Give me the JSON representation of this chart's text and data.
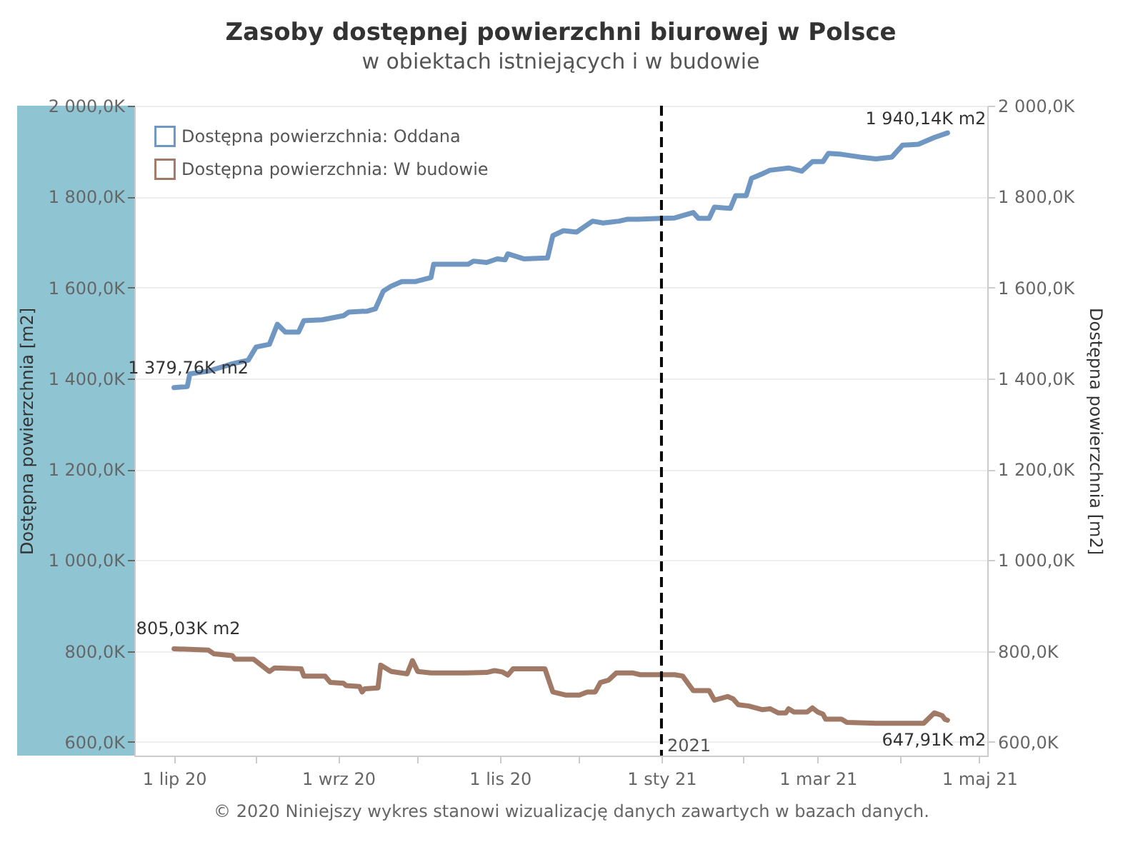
{
  "chart_data": {
    "type": "line",
    "title": "Zasoby dostępnej powierzchni biurowej w Polsce",
    "subtitle": "w obiektach istniejących i w budowie",
    "ylabel": "Dostępna powierzchnia [m2]",
    "y2label": "Dostępna powierzchnia [m2]",
    "xlim": [
      "2020-06-16",
      "2021-05-04"
    ],
    "xticks": [
      {
        "value": "2020-07-01",
        "label": "1 lip 20"
      },
      {
        "value": "2020-08-01",
        "label": null
      },
      {
        "value": "2020-09-01",
        "label": "1 wrz 20"
      },
      {
        "value": "2020-10-01",
        "label": null
      },
      {
        "value": "2020-11-01",
        "label": "1 lis 20"
      },
      {
        "value": "2020-12-01",
        "label": null
      },
      {
        "value": "2021-01-01",
        "label": "1 sty 21"
      },
      {
        "value": "2021-02-01",
        "label": null
      },
      {
        "value": "2021-03-01",
        "label": "1 mar 21"
      },
      {
        "value": "2021-04-01",
        "label": null
      },
      {
        "value": "2021-05-01",
        "label": "1 maj 21"
      }
    ],
    "ylim": [
      570,
      2000
    ],
    "yticks": [
      {
        "value": 600,
        "label": "600,0K"
      },
      {
        "value": 800,
        "label": "800,0K"
      },
      {
        "value": 1000,
        "label": "1 000,0K"
      },
      {
        "value": 1200,
        "label": "1 200,0K"
      },
      {
        "value": 1400,
        "label": "1 400,0K"
      },
      {
        "value": 1600,
        "label": "1 600,0K"
      },
      {
        "value": 1800,
        "label": "1 800,0K"
      },
      {
        "value": 2000,
        "label": "2 000,0K"
      }
    ],
    "y2lim": [
      570,
      2000
    ],
    "y2ticks": [
      {
        "value": 600,
        "label": "600,0K"
      },
      {
        "value": 800,
        "label": "800,0K"
      },
      {
        "value": 1000,
        "label": "1 000,0K"
      },
      {
        "value": 1200,
        "label": "1 200,0K"
      },
      {
        "value": 1400,
        "label": "1 400,0K"
      },
      {
        "value": 1600,
        "label": "1 600,0K"
      },
      {
        "value": 1800,
        "label": "1 800,0K"
      },
      {
        "value": 2000,
        "label": "2 000,0K"
      }
    ],
    "grid": "y",
    "legend": "top left",
    "series": [
      {
        "name": "Dostępna powierzchnia: Oddana",
        "color": "#7096c2",
        "x": [
          "2020-07-01",
          "2020-07-06",
          "2020-07-07",
          "2020-07-14",
          "2020-07-23",
          "2020-07-29",
          "2020-08-01",
          "2020-08-06",
          "2020-08-09",
          "2020-08-12",
          "2020-08-17",
          "2020-08-19",
          "2020-08-26",
          "2020-09-03",
          "2020-09-05",
          "2020-09-12",
          "2020-09-15",
          "2020-09-18",
          "2020-09-21",
          "2020-09-25",
          "2020-09-30",
          "2020-10-06",
          "2020-10-07",
          "2020-10-20",
          "2020-10-22",
          "2020-10-27",
          "2020-10-31",
          "2020-11-03",
          "2020-11-04",
          "2020-11-10",
          "2020-11-19",
          "2020-11-21",
          "2020-11-25",
          "2020-11-30",
          "2020-12-06",
          "2020-12-10",
          "2020-12-16",
          "2020-12-19",
          "2020-12-23",
          "2021-01-01",
          "2021-01-06",
          "2021-01-13",
          "2021-01-15",
          "2021-01-19",
          "2021-01-21",
          "2021-01-27",
          "2021-01-29",
          "2021-02-02",
          "2021-02-04",
          "2021-02-08",
          "2021-02-11",
          "2021-02-18",
          "2021-02-23",
          "2021-02-27",
          "2021-03-03",
          "2021-03-05",
          "2021-03-10",
          "2021-03-17",
          "2021-03-23",
          "2021-03-29",
          "2021-04-02",
          "2021-04-08",
          "2021-04-14",
          "2021-04-19"
        ],
        "values": [
          1379.76,
          1382,
          1410,
          1416,
          1432,
          1440,
          1469,
          1475,
          1519,
          1502,
          1502,
          1527,
          1529,
          1538,
          1546,
          1548,
          1553,
          1592,
          1603,
          1613,
          1613,
          1622,
          1651,
          1651,
          1658,
          1655,
          1663,
          1661,
          1674,
          1663,
          1665,
          1714,
          1725,
          1722,
          1746,
          1742,
          1746,
          1750,
          1750,
          1752,
          1753,
          1765,
          1752,
          1752,
          1777,
          1774,
          1802,
          1802,
          1840,
          1850,
          1858,
          1863,
          1856,
          1877,
          1877,
          1895,
          1893,
          1887,
          1883,
          1887,
          1913,
          1915,
          1930,
          1940.14
        ]
      },
      {
        "name": "Dostępna powierzchnia: W budowie",
        "color": "#a07a66",
        "x": [
          "2020-07-01",
          "2020-07-14",
          "2020-07-16",
          "2020-07-23",
          "2020-07-24",
          "2020-07-31",
          "2020-08-02",
          "2020-08-06",
          "2020-08-08",
          "2020-08-18",
          "2020-08-19",
          "2020-08-27",
          "2020-08-29",
          "2020-09-03",
          "2020-09-04",
          "2020-09-09",
          "2020-09-10",
          "2020-09-11",
          "2020-09-16",
          "2020-09-17",
          "2020-09-21",
          "2020-09-27",
          "2020-09-29",
          "2020-10-01",
          "2020-10-06",
          "2020-10-19",
          "2020-10-27",
          "2020-10-30",
          "2020-11-02",
          "2020-11-04",
          "2020-11-06",
          "2020-11-18",
          "2020-11-21",
          "2020-11-26",
          "2020-12-01",
          "2020-12-04",
          "2020-12-07",
          "2020-12-09",
          "2020-12-12",
          "2020-12-15",
          "2020-12-21",
          "2020-12-24",
          "2021-01-06",
          "2021-01-09",
          "2021-01-13",
          "2021-01-19",
          "2021-01-21",
          "2021-01-26",
          "2021-01-28",
          "2021-01-30",
          "2021-02-03",
          "2021-02-08",
          "2021-02-11",
          "2021-02-14",
          "2021-02-17",
          "2021-02-18",
          "2021-02-20",
          "2021-02-25",
          "2021-02-27",
          "2021-03-01",
          "2021-03-03",
          "2021-03-04",
          "2021-03-10",
          "2021-03-12",
          "2021-03-23",
          "2021-04-10",
          "2021-04-14",
          "2021-04-17",
          "2021-04-18",
          "2021-04-19"
        ],
        "values": [
          805.03,
          802,
          794,
          790,
          782,
          782,
          773,
          755,
          763,
          761,
          745,
          745,
          731,
          729,
          724,
          722,
          710,
          717,
          719,
          769,
          755,
          750,
          779,
          755,
          752,
          752,
          753,
          757,
          754,
          747,
          761,
          761,
          710,
          703,
          703,
          710,
          710,
          731,
          736,
          752,
          752,
          748,
          748,
          745,
          713,
          713,
          692,
          700,
          695,
          682,
          679,
          671,
          673,
          664,
          664,
          673,
          666,
          666,
          675,
          666,
          661,
          650,
          650,
          643,
          641,
          641,
          664,
          658,
          650,
          647.91
        ]
      }
    ],
    "ref_lines": [
      {
        "axis": "x",
        "value": "2021-01-01",
        "label": "2021",
        "color": "#000000",
        "line_style": "dashed"
      }
    ],
    "annotations": [
      {
        "text": "1 379,76K m2",
        "x": "2020-07-01",
        "y": 1379.76
      },
      {
        "text": "1 940,14K m2",
        "x": "2021-04-19",
        "y": 1940.14
      },
      {
        "text": "805,03K m2",
        "x": "2020-07-01",
        "y": 805.03
      },
      {
        "text": "647,91K m2",
        "x": "2021-04-19",
        "y": 647.91
      },
      "© 2020 Niniejszy wykres stanowi wizualizację danych zawartych w bazach danych."
    ]
  }
}
